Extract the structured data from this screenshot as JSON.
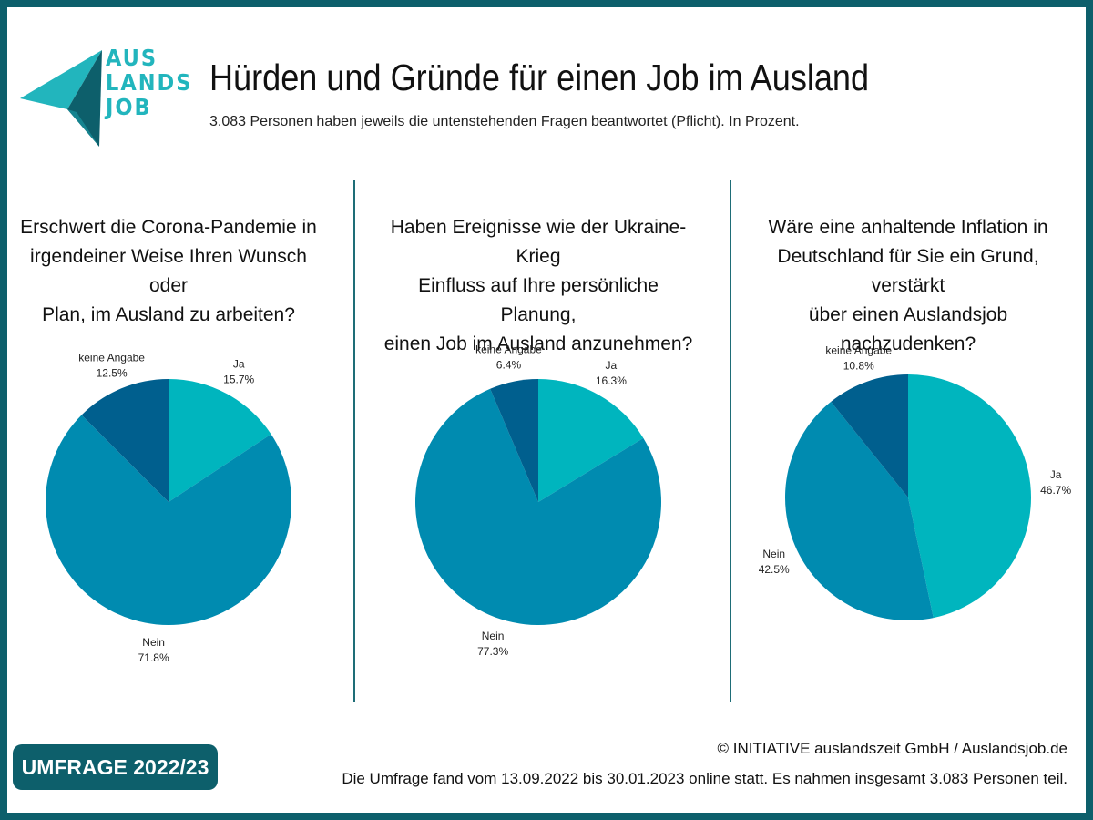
{
  "logo": {
    "line1": "AUS",
    "line2": "LANDS",
    "line3": "JOB"
  },
  "title": "Hürden und Gründe für einen Job im Ausland",
  "subtitle": "3.083 Personen haben jeweils die untenstehenden Fragen beantwortet (Pflicht). In Prozent.",
  "badge": "UMFRAGE 2022/23",
  "copyright": "© INITIATIVE auslandszeit GmbH / Auslandsjob.de",
  "footnote": "Die Umfrage fand vom 13.09.2022 bis 30.01.2023 online statt. Es nahmen insgesamt 3.083 Personen teil.",
  "colors": {
    "brand": "#0d5f6b",
    "ja": "#00b5be",
    "nein": "#008bb0",
    "keine_angabe": "#005f8e"
  },
  "chart_data": [
    {
      "type": "pie",
      "question": [
        "Erschwert die Corona-Pandemie in",
        "irgendeiner Weise Ihren Wunsch oder",
        "Plan, im Ausland zu arbeiten?"
      ],
      "slices": [
        {
          "label": "Ja",
          "value": 15.7,
          "display": "15.7%",
          "color": "#00b5be"
        },
        {
          "label": "Nein",
          "value": 71.8,
          "display": "71.8%",
          "color": "#008bb0"
        },
        {
          "label": "keine Angabe",
          "value": 12.5,
          "display": "12.5%",
          "color": "#005f8e"
        }
      ]
    },
    {
      "type": "pie",
      "question": [
        "Haben Ereignisse wie der Ukraine-Krieg",
        "Einfluss auf Ihre persönliche Planung,",
        "einen Job im Ausland anzunehmen?"
      ],
      "slices": [
        {
          "label": "Ja",
          "value": 16.3,
          "display": "16.3%",
          "color": "#00b5be"
        },
        {
          "label": "Nein",
          "value": 77.3,
          "display": "77.3%",
          "color": "#008bb0"
        },
        {
          "label": "keine Angabe",
          "value": 6.4,
          "display": "6.4%",
          "color": "#005f8e"
        }
      ]
    },
    {
      "type": "pie",
      "question": [
        "Wäre eine anhaltende Inflation in",
        "Deutschland für Sie ein Grund, verstärkt",
        "über einen Auslandsjob nachzudenken?"
      ],
      "slices": [
        {
          "label": "Ja",
          "value": 46.7,
          "display": "46.7%",
          "color": "#00b5be"
        },
        {
          "label": "Nein",
          "value": 42.5,
          "display": "42.5%",
          "color": "#008bb0"
        },
        {
          "label": "keine Angabe",
          "value": 10.8,
          "display": "10.8%",
          "color": "#005f8e"
        }
      ]
    }
  ]
}
